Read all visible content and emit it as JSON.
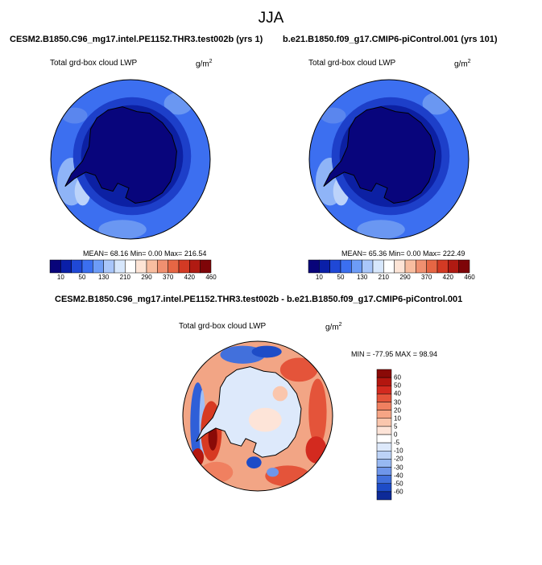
{
  "figure": {
    "title": "JJA"
  },
  "panels": {
    "left": {
      "case": "CESM2.B1850.C96_mg17.intel.PE1152.THR3.test002b (yrs 1)",
      "variable": "Total grd-box cloud LWP",
      "units": "g/m",
      "units_exp": "2",
      "stats": "MEAN=  68.16  Min=   0.00  Max= 216.54"
    },
    "right": {
      "case": "b.e21.B1850.f09_g17.CMIP6-piControl.001 (yrs 101)",
      "variable": "Total grd-box cloud LWP",
      "units": "g/m",
      "units_exp": "2",
      "stats": "MEAN=  65.36  Min=   0.00  Max= 222.49"
    },
    "diff": {
      "case": "CESM2.B1850.C96_mg17.intel.PE1152.THR3.test002b - b.e21.B1850.f09_g17.CMIP6-piControl.001",
      "variable": "Total grd-box cloud LWP",
      "units": "g/m",
      "units_exp": "2",
      "stats": "MIN = -77.95 MAX =  98.94"
    }
  },
  "chart_data": [
    {
      "type": "heatmap",
      "projection": "south-polar-stereographic",
      "title": "Total grd-box cloud LWP",
      "units": "g/m^2",
      "mean": 68.16,
      "min": 0.0,
      "max": 216.54,
      "colorbar": {
        "orientation": "horizontal",
        "levels": [
          10,
          50,
          130,
          210,
          290,
          370,
          420,
          460
        ],
        "colors": [
          "#08047a",
          "#0a1fa8",
          "#1f48d6",
          "#3b6ff0",
          "#6d9cf7",
          "#a9c6fa",
          "#d7e7fc",
          "#ffffff",
          "#fde4d6",
          "#f8bda0",
          "#f09070",
          "#e66644",
          "#d33a24",
          "#b01a12",
          "#7e0508"
        ]
      }
    },
    {
      "type": "heatmap",
      "projection": "south-polar-stereographic",
      "title": "Total grd-box cloud LWP",
      "units": "g/m^2",
      "mean": 65.36,
      "min": 0.0,
      "max": 222.49,
      "colorbar": {
        "orientation": "horizontal",
        "levels": [
          10,
          50,
          130,
          210,
          290,
          370,
          420,
          460
        ],
        "colors": [
          "#08047a",
          "#0a1fa8",
          "#1f48d6",
          "#3b6ff0",
          "#6d9cf7",
          "#a9c6fa",
          "#d7e7fc",
          "#ffffff",
          "#fde4d6",
          "#f8bda0",
          "#f09070",
          "#e66644",
          "#d33a24",
          "#b01a12",
          "#7e0508"
        ]
      }
    },
    {
      "type": "heatmap",
      "projection": "south-polar-stereographic",
      "title": "Total grd-box cloud LWP",
      "units": "g/m^2",
      "min": -77.95,
      "max": 98.94,
      "colorbar": {
        "orientation": "vertical",
        "levels": [
          60,
          50,
          40,
          30,
          20,
          10,
          5,
          0,
          -5,
          -10,
          -20,
          -30,
          -40,
          -50,
          -60
        ],
        "colors": [
          "#8a0a07",
          "#b3160f",
          "#d32a1f",
          "#e4543a",
          "#f08060",
          "#f6a585",
          "#fac6ad",
          "#fde4d8",
          "#ffffff",
          "#dde9fb",
          "#bcd2f7",
          "#97b8f2",
          "#6f96ea",
          "#4270dc",
          "#1e4cc7",
          "#0d2a98"
        ]
      }
    }
  ]
}
